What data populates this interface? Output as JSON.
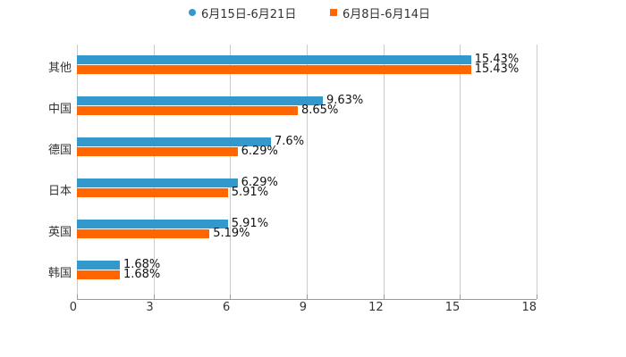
{
  "chart_data": {
    "type": "bar",
    "orientation": "horizontal",
    "title": "",
    "xlabel": "",
    "ylabel": "",
    "xlim": [
      0,
      18
    ],
    "x_ticks": [
      "0",
      "3",
      "6",
      "9",
      "12",
      "15",
      "18"
    ],
    "grid": true,
    "legend_position": "top",
    "categories": [
      "其他",
      "中国",
      "德国",
      "日本",
      "英国",
      "韩国"
    ],
    "series": [
      {
        "name": "6月15日-6月21日",
        "color": "#3399cc",
        "values": [
          15.43,
          9.63,
          7.6,
          6.29,
          5.91,
          1.68
        ],
        "labels": [
          "15.43%",
          "9.63%",
          "7.6%",
          "6.29%",
          "5.91%",
          "1.68%"
        ]
      },
      {
        "name": "6月8日-6月14日",
        "color": "#ff6600",
        "values": [
          15.43,
          8.65,
          6.29,
          5.91,
          5.19,
          1.68
        ],
        "labels": [
          "15.43%",
          "8.65%",
          "6.29%",
          "5.91%",
          "5.19%",
          "1.68%"
        ]
      }
    ]
  }
}
